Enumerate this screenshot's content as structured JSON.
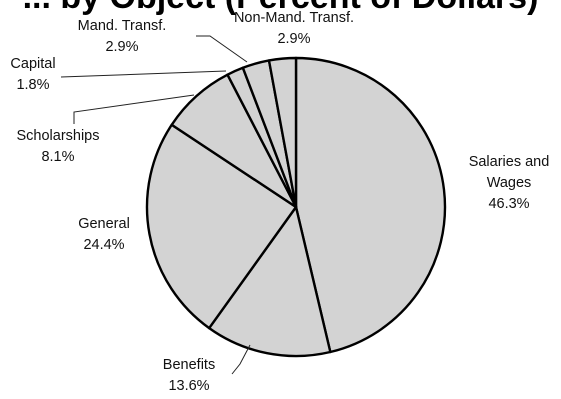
{
  "chart_data": {
    "type": "pie",
    "title": "... by Object (Percent of Dollars)",
    "slice_fill": "#d3d3d3",
    "slice_stroke": "#000000",
    "slices": [
      {
        "label_lines": [
          "Salaries and",
          "Wages"
        ],
        "value": 46.3,
        "value_text": "46.3%"
      },
      {
        "label_lines": [
          "Benefits"
        ],
        "value": 13.6,
        "value_text": "13.6%"
      },
      {
        "label_lines": [
          "General"
        ],
        "value": 24.4,
        "value_text": "24.4%"
      },
      {
        "label_lines": [
          "Scholarships"
        ],
        "value": 8.1,
        "value_text": "8.1%"
      },
      {
        "label_lines": [
          "Capital"
        ],
        "value": 1.8,
        "value_text": "1.8%"
      },
      {
        "label_lines": [
          "Mand. Transf."
        ],
        "value": 2.9,
        "value_text": "2.9%"
      },
      {
        "label_lines": [
          "Non-Mand. Transf."
        ],
        "value": 2.9,
        "value_text": "2.9%"
      }
    ]
  }
}
